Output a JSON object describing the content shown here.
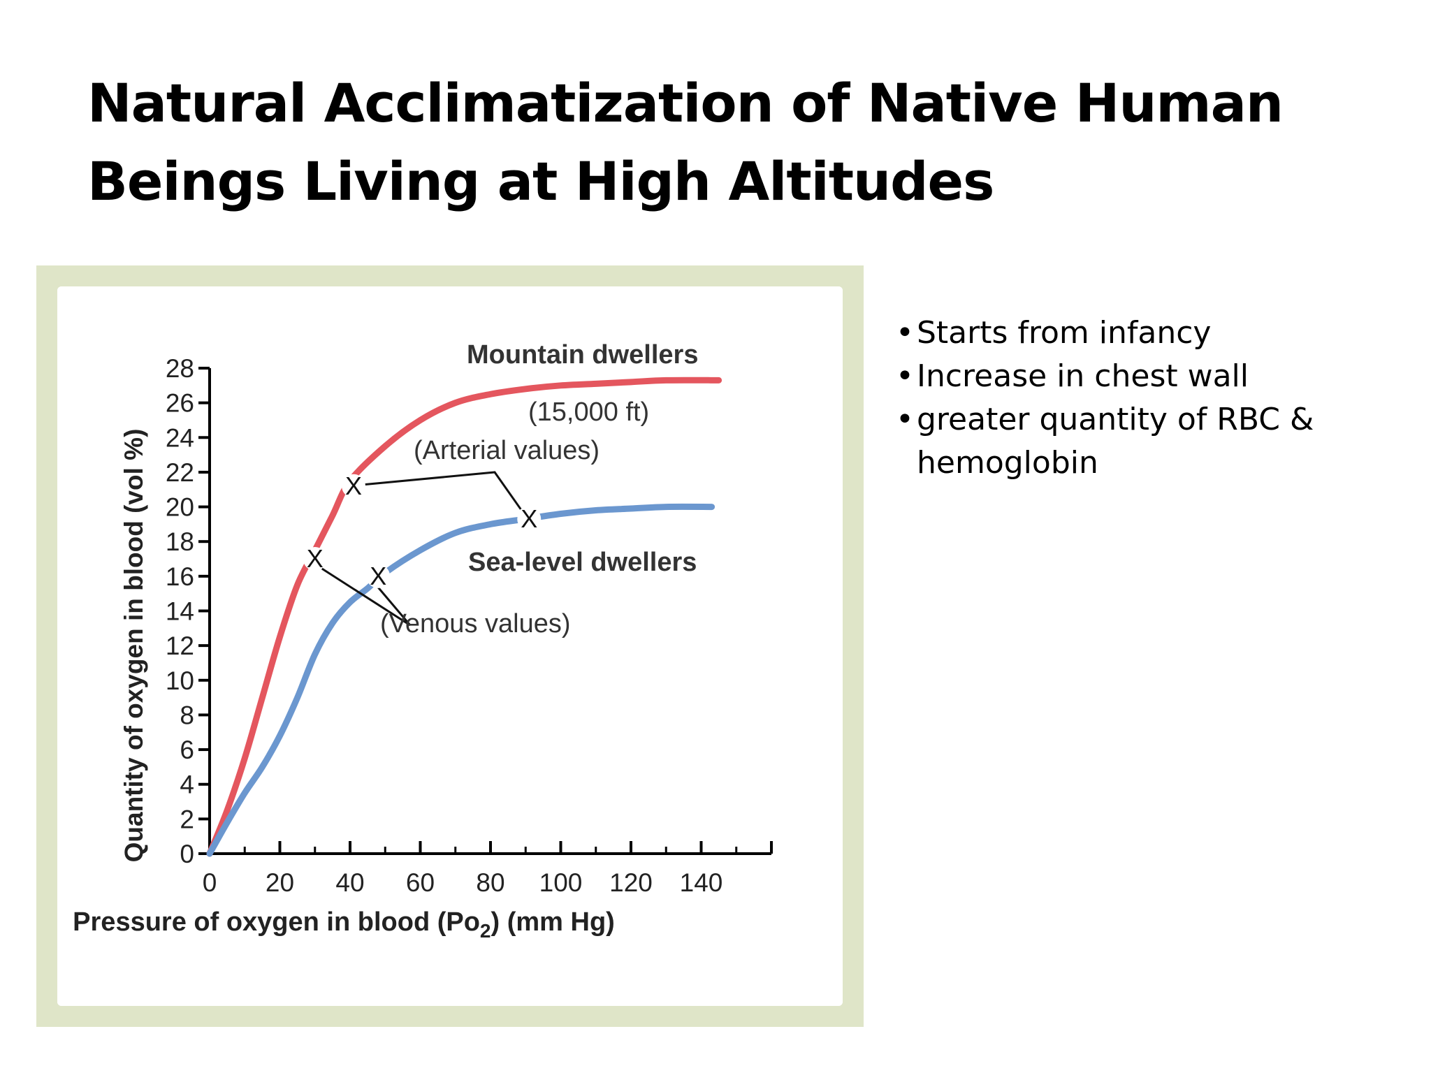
{
  "slide": {
    "title_line1": "Natural Acclimatization of Native Human",
    "title_line2": "Beings Living at High Altitudes",
    "bullets": [
      "Starts from infancy",
      "Increase in chest wall",
      "greater quantity of RBC & hemoglobin"
    ]
  },
  "chart_data": {
    "type": "line",
    "xlabel": "Pressure of oxygen in blood (Po2) (mm Hg)",
    "xlabel_main": "Pressure of oxygen in blood (Po",
    "xlabel_sub": "2",
    "xlabel_tail": ") (mm Hg)",
    "ylabel": "Quantity of oxygen in blood (vol %)",
    "xlim": [
      0,
      160
    ],
    "ylim": [
      0,
      28
    ],
    "x_ticks": [
      0,
      20,
      40,
      60,
      80,
      100,
      120,
      140
    ],
    "y_ticks": [
      0,
      2,
      4,
      6,
      8,
      10,
      12,
      14,
      16,
      18,
      20,
      22,
      24,
      26,
      28
    ],
    "colors": {
      "mountain": "#e4565e",
      "sea_level": "#6b97cf",
      "axis": "#000000"
    },
    "series": [
      {
        "name": "Mountain dwellers",
        "x": [
          0,
          5,
          10,
          15,
          20,
          25,
          30,
          35,
          40,
          50,
          60,
          70,
          80,
          90,
          100,
          110,
          120,
          130,
          145
        ],
        "values": [
          0,
          2.5,
          5.5,
          9.0,
          12.5,
          15.5,
          17.5,
          19.5,
          21.5,
          23.5,
          25.0,
          26.0,
          26.5,
          26.8,
          27.0,
          27.1,
          27.2,
          27.3,
          27.3
        ]
      },
      {
        "name": "Sea-level dwellers",
        "x": [
          0,
          5,
          10,
          15,
          20,
          25,
          30,
          35,
          40,
          45,
          50,
          60,
          70,
          80,
          90,
          100,
          110,
          120,
          130,
          143
        ],
        "values": [
          0,
          1.8,
          3.5,
          5.0,
          6.8,
          9.0,
          11.5,
          13.3,
          14.5,
          15.3,
          16.2,
          17.5,
          18.5,
          19.0,
          19.3,
          19.6,
          19.8,
          19.9,
          20.0,
          20.0
        ]
      }
    ],
    "markers": [
      {
        "label": "X",
        "x": 41,
        "y": 21.2,
        "kind": "arterial"
      },
      {
        "label": "X",
        "x": 91,
        "y": 19.3,
        "kind": "arterial"
      },
      {
        "label": "X",
        "x": 30,
        "y": 17.0,
        "kind": "venous"
      },
      {
        "label": "X",
        "x": 48,
        "y": 16.0,
        "kind": "venous"
      }
    ],
    "annotations": {
      "mountain_label": "Mountain dwellers",
      "altitude_label": "(15,000 ft)",
      "arterial_label": "(Arterial values)",
      "sea_label": "Sea-level dwellers",
      "venous_label": "(Venous values)"
    }
  }
}
